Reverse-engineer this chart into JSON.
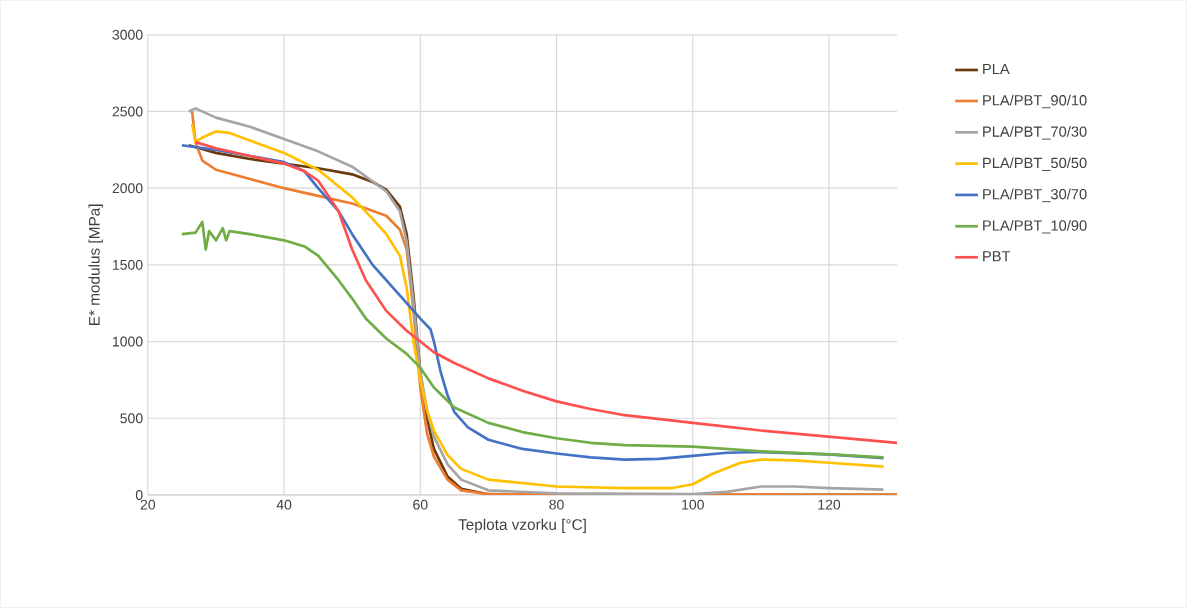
{
  "chart_data": {
    "type": "line",
    "xlabel": "Teplota vzorku [°C]",
    "ylabel": "E* modulus [MPa]",
    "xlim": [
      20,
      130
    ],
    "ylim": [
      0,
      3000
    ],
    "xticks": [
      20,
      40,
      60,
      80,
      100,
      120
    ],
    "yticks": [
      0,
      500,
      1000,
      1500,
      2000,
      2500,
      3000
    ],
    "grid": true,
    "legend": "right",
    "marker": "none",
    "line_style": "solid",
    "series": [
      {
        "name": "PLA",
        "color": "#6b3a0c",
        "x": [
          26,
          30,
          35,
          40,
          45,
          50,
          53,
          55,
          57,
          58,
          59,
          60,
          61,
          62,
          64,
          66,
          70,
          80,
          130
        ],
        "values": [
          2280,
          2230,
          2190,
          2160,
          2130,
          2090,
          2040,
          1990,
          1880,
          1700,
          1300,
          800,
          500,
          300,
          120,
          40,
          5,
          0,
          0
        ]
      },
      {
        "name": "PLA/PBT_90/10",
        "color": "#ed7d31",
        "x": [
          26.5,
          27,
          28,
          30,
          35,
          40,
          45,
          50,
          55,
          57,
          58,
          59,
          60,
          61,
          62,
          64,
          66,
          70,
          130
        ],
        "values": [
          2500,
          2300,
          2180,
          2120,
          2060,
          2000,
          1950,
          1900,
          1820,
          1730,
          1600,
          1200,
          700,
          400,
          250,
          100,
          30,
          5,
          0
        ]
      },
      {
        "name": "PLA/PBT_70/30",
        "color": "#a5a5a5",
        "x": [
          26,
          27,
          30,
          35,
          40,
          45,
          50,
          55,
          57,
          58,
          59,
          60,
          61,
          62,
          64,
          66,
          70,
          80,
          100,
          105,
          110,
          115,
          120,
          128
        ],
        "values": [
          2500,
          2520,
          2460,
          2400,
          2320,
          2240,
          2140,
          1980,
          1850,
          1650,
          1250,
          800,
          550,
          380,
          200,
          100,
          30,
          10,
          5,
          20,
          55,
          55,
          45,
          35
        ]
      },
      {
        "name": "PLA/PBT_50/50",
        "color": "#ffc000",
        "x": [
          26.5,
          27,
          28,
          30,
          32,
          35,
          40,
          45,
          50,
          53,
          55,
          57,
          58,
          59,
          60,
          61,
          62,
          64,
          66,
          70,
          80,
          90,
          97,
          100,
          103,
          107,
          110,
          115,
          120,
          128
        ],
        "values": [
          2420,
          2300,
          2330,
          2370,
          2360,
          2310,
          2230,
          2120,
          1940,
          1800,
          1700,
          1560,
          1350,
          1000,
          750,
          550,
          420,
          260,
          170,
          100,
          55,
          45,
          45,
          70,
          140,
          210,
          230,
          225,
          210,
          185
        ]
      },
      {
        "name": "PLA/PBT_30/70",
        "color": "#4472c4",
        "x": [
          25,
          30,
          35,
          40,
          43,
          45,
          48,
          50,
          53,
          55,
          58,
          60,
          61.5,
          62,
          63,
          64,
          65,
          67,
          70,
          75,
          80,
          85,
          90,
          95,
          100,
          105,
          110,
          120,
          128
        ],
        "values": [
          2280,
          2250,
          2210,
          2170,
          2110,
          2000,
          1850,
          1700,
          1500,
          1400,
          1250,
          1150,
          1080,
          1000,
          800,
          650,
          540,
          440,
          360,
          300,
          270,
          245,
          230,
          235,
          255,
          275,
          280,
          265,
          240
        ]
      },
      {
        "name": "PLA/PBT_10/90",
        "color": "#70ad47",
        "x": [
          25,
          27,
          28,
          28.5,
          29,
          30,
          31,
          31.5,
          32,
          35,
          40,
          43,
          45,
          48,
          50,
          52,
          55,
          58,
          60,
          62,
          65,
          70,
          75,
          80,
          85,
          90,
          100,
          110,
          120,
          128
        ],
        "values": [
          1700,
          1710,
          1780,
          1600,
          1720,
          1660,
          1740,
          1660,
          1720,
          1700,
          1660,
          1620,
          1560,
          1400,
          1280,
          1150,
          1020,
          920,
          830,
          700,
          570,
          470,
          410,
          370,
          340,
          325,
          315,
          285,
          265,
          245
        ]
      },
      {
        "name": "PBT",
        "color": "#ff5050",
        "x": [
          27,
          30,
          35,
          40,
          43,
          45,
          48,
          50,
          52,
          55,
          58,
          60,
          62,
          65,
          70,
          75,
          80,
          85,
          90,
          100,
          110,
          120,
          130
        ],
        "values": [
          2300,
          2260,
          2210,
          2160,
          2110,
          2050,
          1850,
          1600,
          1400,
          1200,
          1070,
          1000,
          930,
          860,
          760,
          680,
          610,
          560,
          520,
          470,
          420,
          380,
          340
        ]
      }
    ]
  }
}
